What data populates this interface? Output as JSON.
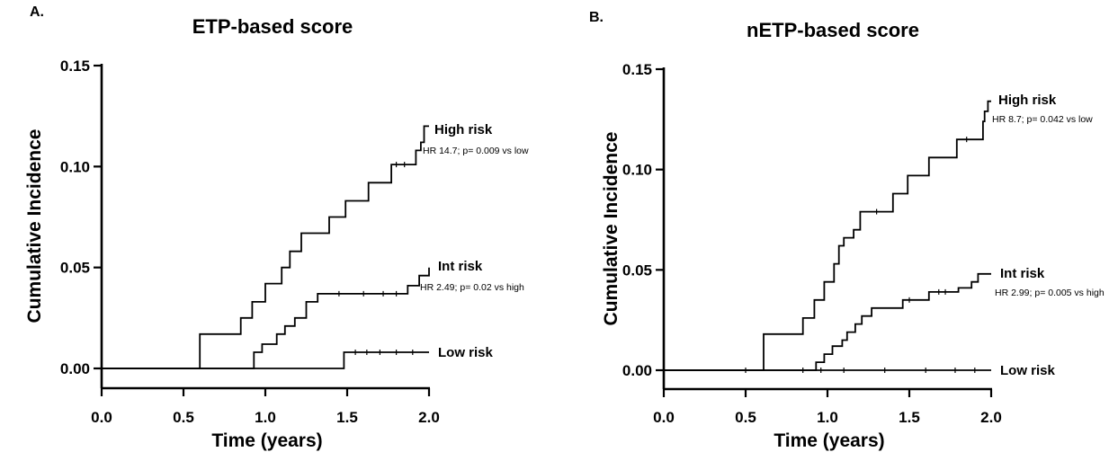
{
  "chart_data": [
    {
      "type": "line",
      "panel": "A.",
      "title": "ETP-based score",
      "xlabel": "Time (years)",
      "ylabel": "Cumulative Incidence",
      "xlim": [
        0,
        2.0
      ],
      "ylim": [
        0,
        0.15
      ],
      "xticks": [
        "0.0",
        "0.5",
        "1.0",
        "1.5",
        "2.0"
      ],
      "yticks": [
        "0.00",
        "0.05",
        "0.10",
        "0.15"
      ],
      "grid": false,
      "series": [
        {
          "name": "High risk",
          "note": "HR 14.7; p= 0.009 vs low",
          "x": [
            0,
            0.6,
            0.85,
            0.92,
            1.0,
            1.1,
            1.15,
            1.22,
            1.39,
            1.49,
            1.63,
            1.77,
            1.92,
            1.95,
            1.97,
            2.0
          ],
          "y": [
            0,
            0.017,
            0.025,
            0.033,
            0.042,
            0.05,
            0.058,
            0.067,
            0.075,
            0.083,
            0.092,
            0.101,
            0.108,
            0.112,
            0.12,
            0.12
          ]
        },
        {
          "name": "Int risk",
          "note": "HR 2.49;  p= 0.02 vs high",
          "x": [
            0,
            0.93,
            0.98,
            1.07,
            1.12,
            1.18,
            1.25,
            1.32,
            1.87,
            1.94,
            2.0
          ],
          "y": [
            0,
            0.008,
            0.012,
            0.017,
            0.021,
            0.025,
            0.033,
            0.037,
            0.041,
            0.046,
            0.05
          ]
        },
        {
          "name": "Low risk",
          "x": [
            0,
            1.48,
            2.0
          ],
          "y": [
            0,
            0.008,
            0.008
          ]
        }
      ]
    },
    {
      "type": "line",
      "panel": "B.",
      "title": "nETP-based score",
      "xlabel": "Time (years)",
      "ylabel": "Cumulative Incidence",
      "xlim": [
        0,
        2.0
      ],
      "ylim": [
        0,
        0.15
      ],
      "xticks": [
        "0.0",
        "0.5",
        "1.0",
        "1.5",
        "2.0"
      ],
      "yticks": [
        "0.00",
        "0.05",
        "0.10",
        "0.15"
      ],
      "grid": false,
      "series": [
        {
          "name": "High risk",
          "note": "HR 8.7; p= 0.042 vs low",
          "x": [
            0,
            0.61,
            0.85,
            0.92,
            0.98,
            1.04,
            1.07,
            1.1,
            1.16,
            1.2,
            1.28,
            1.4,
            1.49,
            1.62,
            1.79,
            1.95,
            1.96,
            1.98,
            2.0
          ],
          "y": [
            0,
            0.018,
            0.026,
            0.035,
            0.044,
            0.053,
            0.062,
            0.066,
            0.07,
            0.079,
            0.079,
            0.088,
            0.097,
            0.106,
            0.115,
            0.124,
            0.129,
            0.134,
            0.134
          ]
        },
        {
          "name": "Int risk",
          "note": "HR 2.99; p= 0.005 vs high",
          "x": [
            0,
            0.93,
            0.98,
            1.03,
            1.09,
            1.12,
            1.17,
            1.21,
            1.27,
            1.46,
            1.62,
            1.8,
            1.88,
            1.92,
            2.0
          ],
          "y": [
            0,
            0.004,
            0.008,
            0.012,
            0.015,
            0.019,
            0.023,
            0.027,
            0.031,
            0.035,
            0.039,
            0.041,
            0.044,
            0.048,
            0.048
          ]
        },
        {
          "name": "Low risk",
          "x": [
            0,
            2.0
          ],
          "y": [
            0,
            0.0
          ]
        }
      ]
    }
  ]
}
